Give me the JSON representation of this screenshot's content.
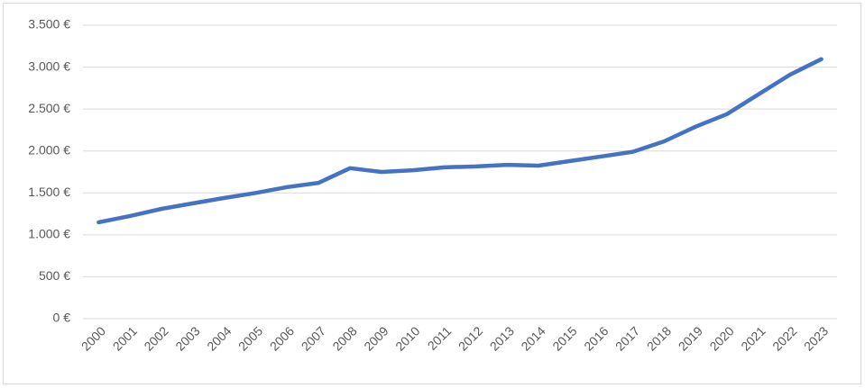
{
  "chart_data": {
    "type": "line",
    "categories": [
      "2000",
      "2001",
      "2002",
      "2003",
      "2004",
      "2005",
      "2006",
      "2007",
      "2008",
      "2009",
      "2010",
      "2011",
      "2012",
      "2013",
      "2014",
      "2015",
      "2016",
      "2017",
      "2018",
      "2019",
      "2020",
      "2021",
      "2022",
      "2023"
    ],
    "values": [
      1150,
      1225,
      1310,
      1375,
      1440,
      1500,
      1570,
      1620,
      1795,
      1750,
      1770,
      1805,
      1815,
      1835,
      1825,
      1880,
      1935,
      1990,
      2115,
      2290,
      2440,
      2675,
      2910,
      3095
    ],
    "color": "#4472c4",
    "ylim": [
      0,
      3500
    ],
    "yticks": [
      {
        "value": 0,
        "label": "0 €"
      },
      {
        "value": 500,
        "label": "500 €"
      },
      {
        "value": 1000,
        "label": "1.000 €"
      },
      {
        "value": 1500,
        "label": "1.500 €"
      },
      {
        "value": 2000,
        "label": "2.000 €"
      },
      {
        "value": 2500,
        "label": "2.500 €"
      },
      {
        "value": 3000,
        "label": "3.000 €"
      },
      {
        "value": 3500,
        "label": "3.500 €"
      }
    ],
    "grid": true
  }
}
